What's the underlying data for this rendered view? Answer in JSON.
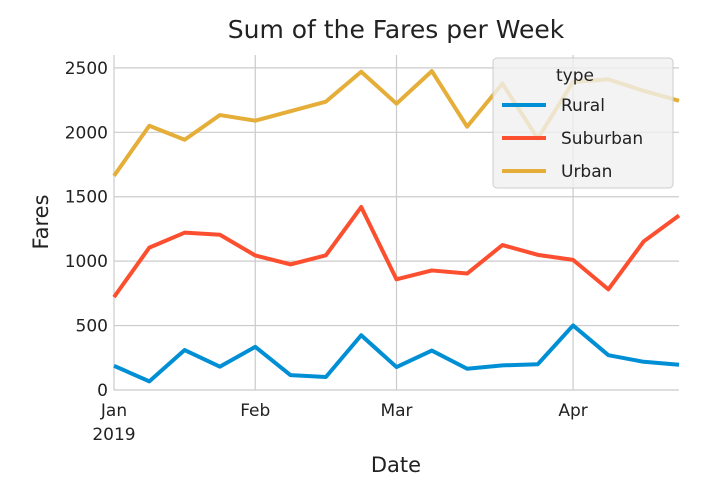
{
  "chart_data": {
    "type": "line",
    "title": "Sum of the Fares per Week",
    "xlabel": "Date",
    "ylabel": "Fares",
    "x": [
      "2019-01-06",
      "2019-01-13",
      "2019-01-20",
      "2019-01-27",
      "2019-02-03",
      "2019-02-10",
      "2019-02-17",
      "2019-02-24",
      "2019-03-03",
      "2019-03-10",
      "2019-03-17",
      "2019-03-24",
      "2019-03-31",
      "2019-04-07",
      "2019-04-14",
      "2019-04-21",
      "2019-04-28"
    ],
    "xlim": [
      "2019-01-06",
      "2019-04-28"
    ],
    "ylim": [
      0,
      2600
    ],
    "xticks": [
      {
        "date": "2019-01-06",
        "label": "Jan",
        "sublabel": "2019"
      },
      {
        "date": "2019-02-03",
        "label": "Feb"
      },
      {
        "date": "2019-03-03",
        "label": "Mar"
      },
      {
        "date": "2019-04-07",
        "label": "Apr"
      }
    ],
    "yticks": [
      0,
      500,
      1000,
      1500,
      2000,
      2500
    ],
    "grid": true,
    "legend": {
      "title": "type",
      "position": "top-right"
    },
    "series": [
      {
        "name": "Rural",
        "color": "#008fd5",
        "values": [
          188,
          67,
          310,
          181,
          335,
          115,
          101,
          425,
          178,
          306,
          165,
          191,
          200,
          501,
          270,
          219,
          196
        ]
      },
      {
        "name": "Suburban",
        "color": "#fc4f30",
        "values": [
          721,
          1105,
          1221,
          1205,
          1044,
          975,
          1045,
          1420,
          859,
          928,
          904,
          1125,
          1049,
          1010,
          781,
          1153,
          1354
        ]
      },
      {
        "name": "Urban",
        "color": "#e5ae38",
        "values": [
          1662,
          2051,
          1942,
          2134,
          2090,
          2164,
          2238,
          2470,
          2222,
          2475,
          2044,
          2378,
          1951,
          2391,
          2411,
          2322,
          2245
        ]
      }
    ]
  }
}
